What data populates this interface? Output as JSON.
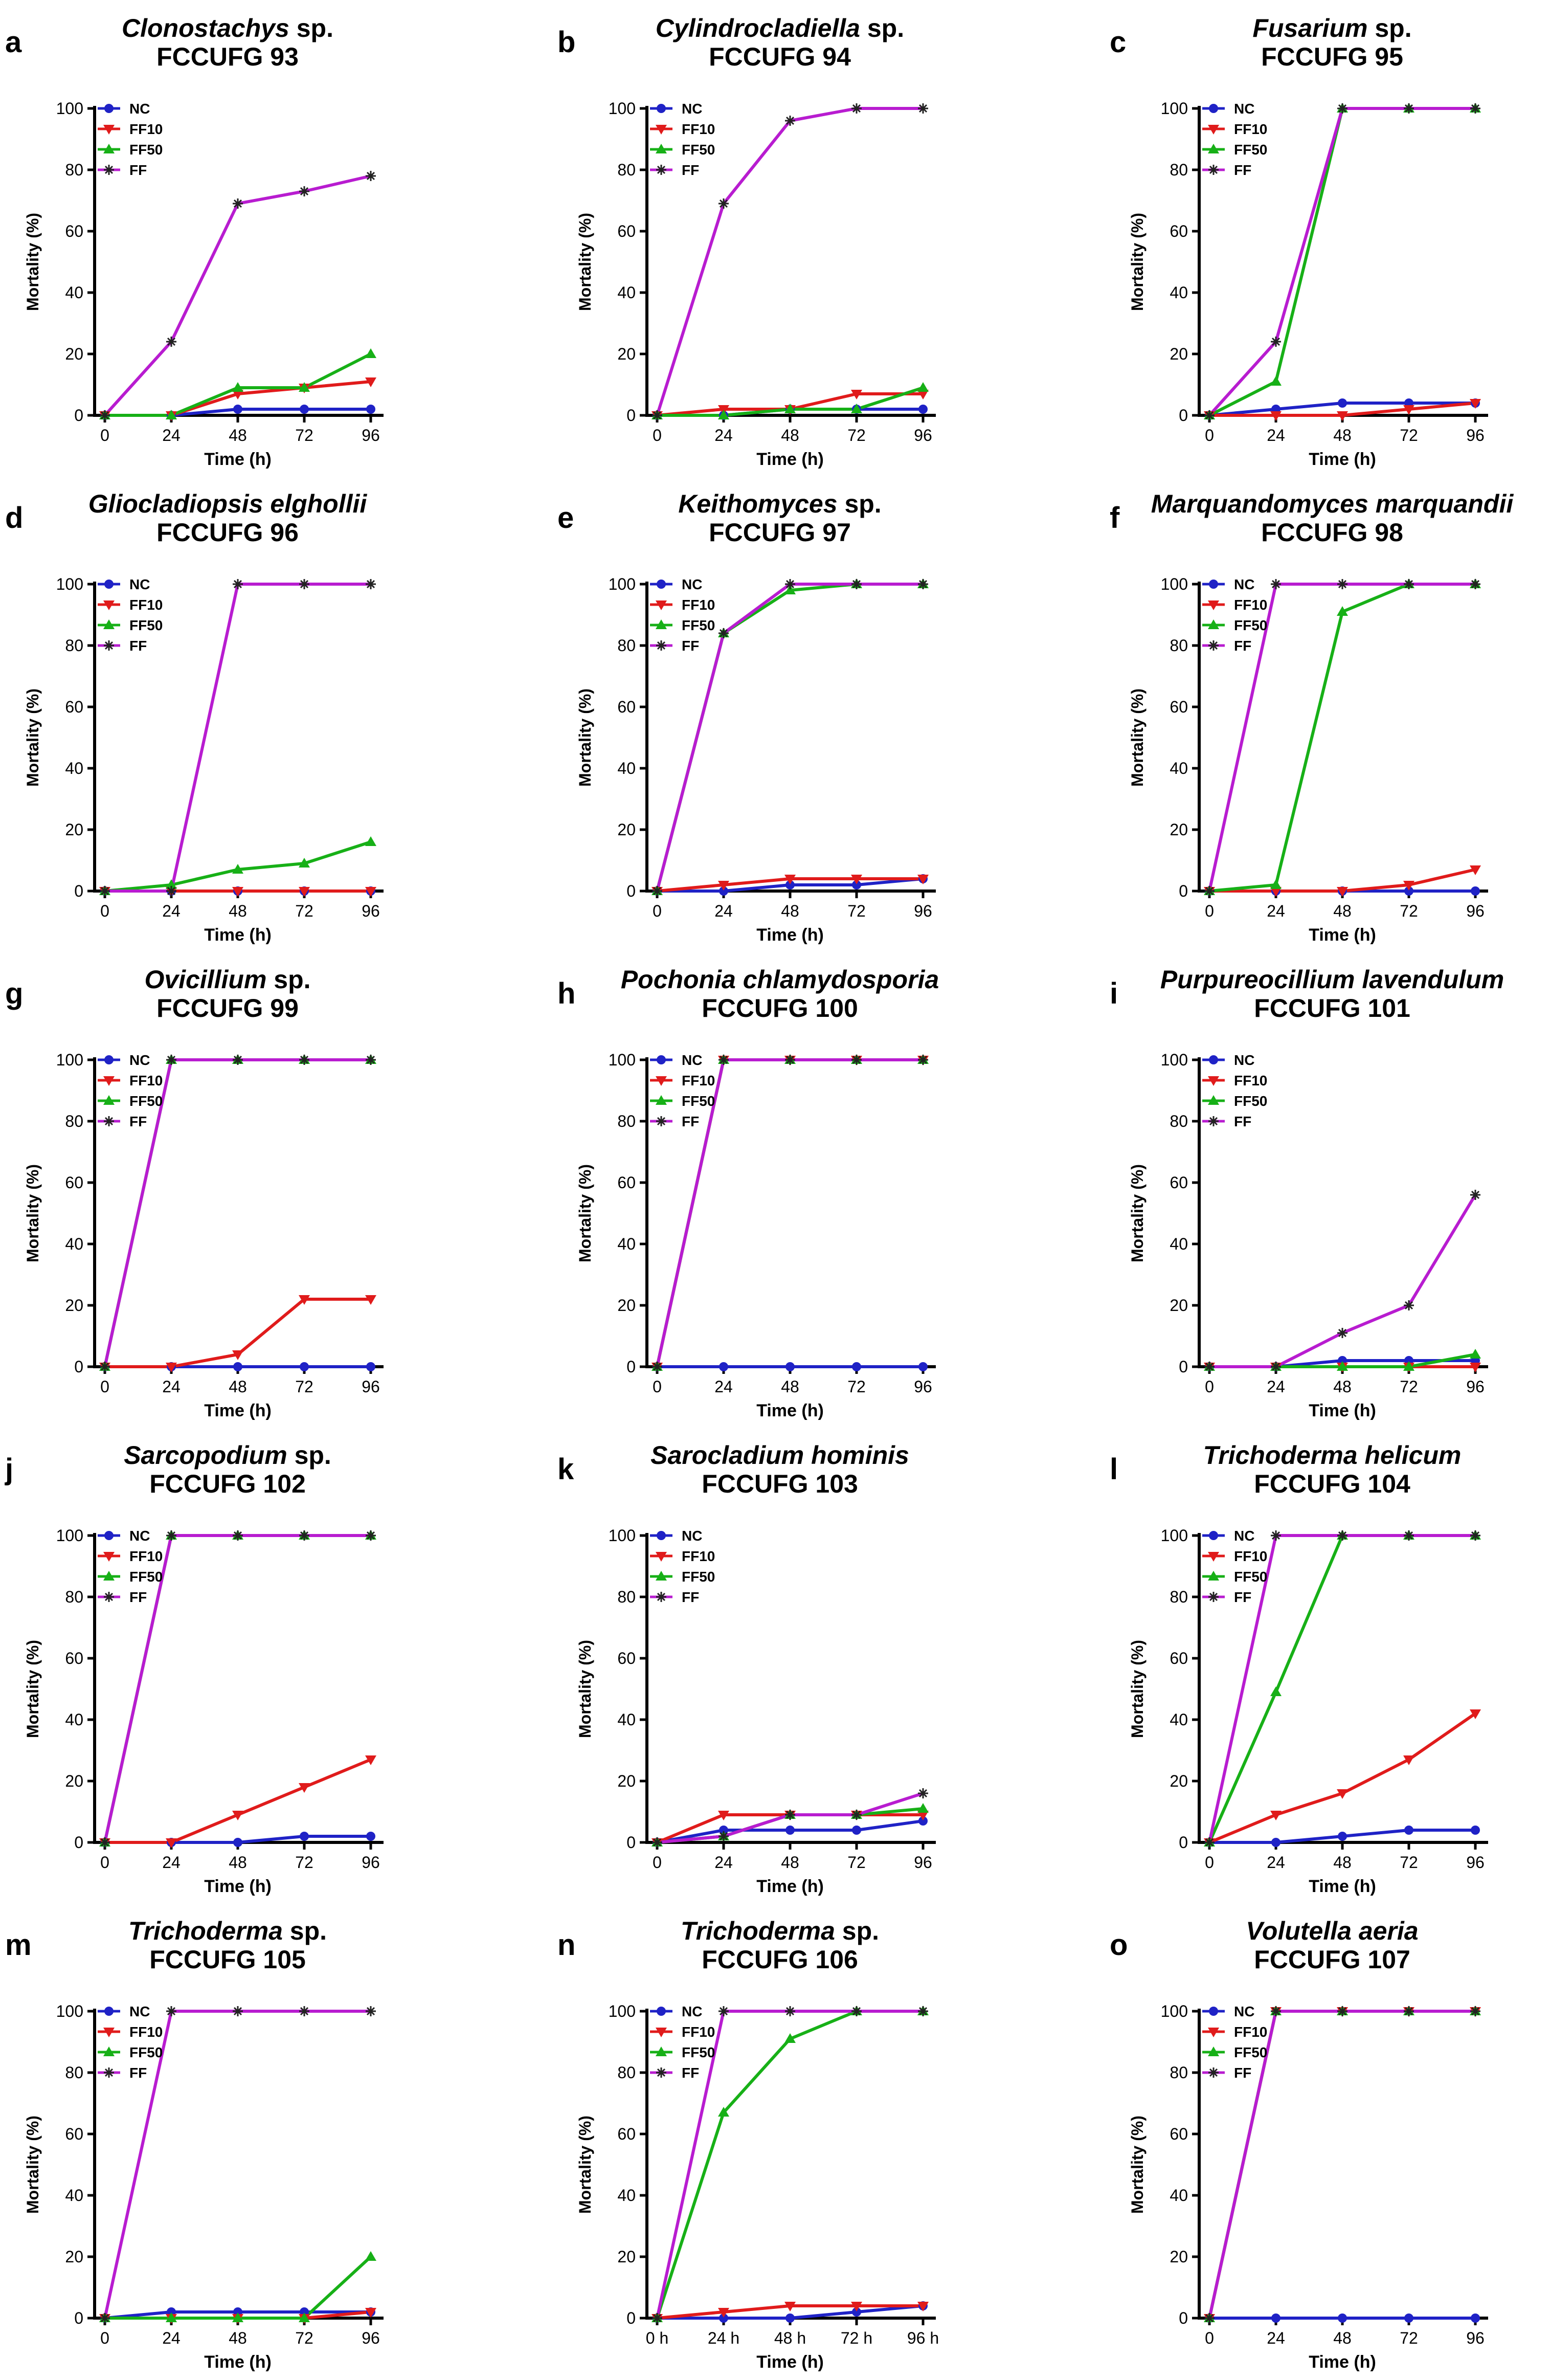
{
  "figure": {
    "series_colors": {
      "NC": "#1f22c6",
      "FF10": "#e01b1b",
      "FF50": "#17b017",
      "FF": "#b81cd0"
    }
  },
  "chart_data": [
    {
      "type": "line",
      "panel": "a",
      "title_italic": "Clonostachys",
      "title_plain": " sp.",
      "subtitle": "FCCUFG 93",
      "xlabel": "Time (h)",
      "ylabel": "Mortality (%)",
      "x_ticklabels": [
        "0",
        "24",
        "48",
        "72",
        "96"
      ],
      "y_ticks": [
        "0",
        "20",
        "40",
        "60",
        "80",
        "100"
      ],
      "ylim": [
        0,
        100
      ],
      "x": [
        0,
        24,
        48,
        72,
        96
      ],
      "series": [
        {
          "name": "NC",
          "values": [
            0,
            0,
            2,
            2,
            2
          ]
        },
        {
          "name": "FF10",
          "values": [
            0,
            0,
            7,
            9,
            11
          ]
        },
        {
          "name": "FF50",
          "values": [
            0,
            0,
            9,
            9,
            20
          ]
        },
        {
          "name": "FF",
          "values": [
            0,
            24,
            69,
            73,
            78
          ]
        }
      ]
    },
    {
      "type": "line",
      "panel": "b",
      "title_italic": "Cylindrocladiella",
      "title_plain": " sp.",
      "subtitle": "FCCUFG 94",
      "xlabel": "Time (h)",
      "ylabel": "Mortality (%)",
      "x_ticklabels": [
        "0",
        "24",
        "48",
        "72",
        "96"
      ],
      "y_ticks": [
        "0",
        "20",
        "40",
        "60",
        "80",
        "100"
      ],
      "ylim": [
        0,
        100
      ],
      "x": [
        0,
        24,
        48,
        72,
        96
      ],
      "series": [
        {
          "name": "NC",
          "values": [
            0,
            0,
            2,
            2,
            2
          ]
        },
        {
          "name": "FF10",
          "values": [
            0,
            2,
            2,
            7,
            7
          ]
        },
        {
          "name": "FF50",
          "values": [
            0,
            0,
            2,
            2,
            9
          ]
        },
        {
          "name": "FF",
          "values": [
            0,
            69,
            96,
            100,
            100
          ]
        }
      ]
    },
    {
      "type": "line",
      "panel": "c",
      "title_italic": "Fusarium",
      "title_plain": " sp.",
      "subtitle": "FCCUFG 95",
      "xlabel": "Time (h)",
      "ylabel": "Mortality (%)",
      "x_ticklabels": [
        "0",
        "24",
        "48",
        "72",
        "96"
      ],
      "y_ticks": [
        "0",
        "20",
        "40",
        "60",
        "80",
        "100"
      ],
      "ylim": [
        0,
        100
      ],
      "x": [
        0,
        24,
        48,
        72,
        96
      ],
      "series": [
        {
          "name": "NC",
          "values": [
            0,
            2,
            4,
            4,
            4
          ]
        },
        {
          "name": "FF10",
          "values": [
            0,
            0,
            0,
            2,
            4
          ]
        },
        {
          "name": "FF50",
          "values": [
            0,
            11,
            100,
            100,
            100
          ]
        },
        {
          "name": "FF",
          "values": [
            0,
            24,
            100,
            100,
            100
          ]
        }
      ]
    },
    {
      "type": "line",
      "panel": "d",
      "title_italic": "Gliocladiopsis elghollii",
      "title_plain": "",
      "subtitle": "FCCUFG 96",
      "xlabel": "Time (h)",
      "ylabel": "Mortality (%)",
      "x_ticklabels": [
        "0",
        "24",
        "48",
        "72",
        "96"
      ],
      "y_ticks": [
        "0",
        "20",
        "40",
        "60",
        "80",
        "100"
      ],
      "ylim": [
        0,
        100
      ],
      "x": [
        0,
        24,
        48,
        72,
        96
      ],
      "series": [
        {
          "name": "NC",
          "values": [
            0,
            0,
            0,
            0,
            0
          ]
        },
        {
          "name": "FF10",
          "values": [
            0,
            0,
            0,
            0,
            0
          ]
        },
        {
          "name": "FF50",
          "values": [
            0,
            2,
            7,
            9,
            16
          ]
        },
        {
          "name": "FF",
          "values": [
            0,
            0,
            100,
            100,
            100
          ]
        }
      ]
    },
    {
      "type": "line",
      "panel": "e",
      "title_italic": "Keithomyces",
      "title_plain": " sp.",
      "subtitle": "FCCUFG 97",
      "xlabel": "Time (h)",
      "ylabel": "Mortality (%)",
      "x_ticklabels": [
        "0",
        "24",
        "48",
        "72",
        "96"
      ],
      "y_ticks": [
        "0",
        "20",
        "40",
        "60",
        "80",
        "100"
      ],
      "ylim": [
        0,
        100
      ],
      "x": [
        0,
        24,
        48,
        72,
        96
      ],
      "series": [
        {
          "name": "NC",
          "values": [
            0,
            0,
            2,
            2,
            4
          ]
        },
        {
          "name": "FF10",
          "values": [
            0,
            2,
            4,
            4,
            4
          ]
        },
        {
          "name": "FF50",
          "values": [
            0,
            84,
            98,
            100,
            100
          ]
        },
        {
          "name": "FF",
          "values": [
            0,
            84,
            100,
            100,
            100
          ]
        }
      ]
    },
    {
      "type": "line",
      "panel": "f",
      "title_italic": "Marquandomyces marquandii",
      "title_plain": "",
      "subtitle": "FCCUFG 98",
      "xlabel": "Time (h)",
      "ylabel": "Mortality (%)",
      "x_ticklabels": [
        "0",
        "24",
        "48",
        "72",
        "96"
      ],
      "y_ticks": [
        "0",
        "20",
        "40",
        "60",
        "80",
        "100"
      ],
      "ylim": [
        0,
        100
      ],
      "x": [
        0,
        24,
        48,
        72,
        96
      ],
      "series": [
        {
          "name": "NC",
          "values": [
            0,
            0,
            0,
            0,
            0
          ]
        },
        {
          "name": "FF10",
          "values": [
            0,
            0,
            0,
            2,
            7
          ]
        },
        {
          "name": "FF50",
          "values": [
            0,
            2,
            91,
            100,
            100
          ]
        },
        {
          "name": "FF",
          "values": [
            0,
            100,
            100,
            100,
            100
          ]
        }
      ]
    },
    {
      "type": "line",
      "panel": "g",
      "title_italic": "Ovicillium",
      "title_plain": " sp.",
      "subtitle": "FCCUFG 99",
      "xlabel": "Time (h)",
      "ylabel": "Mortality (%)",
      "x_ticklabels": [
        "0",
        "24",
        "48",
        "72",
        "96"
      ],
      "y_ticks": [
        "0",
        "20",
        "40",
        "60",
        "80",
        "100"
      ],
      "ylim": [
        0,
        100
      ],
      "x": [
        0,
        24,
        48,
        72,
        96
      ],
      "series": [
        {
          "name": "NC",
          "values": [
            0,
            0,
            0,
            0,
            0
          ]
        },
        {
          "name": "FF10",
          "values": [
            0,
            0,
            4,
            22,
            22
          ]
        },
        {
          "name": "FF50",
          "values": [
            0,
            100,
            100,
            100,
            100
          ]
        },
        {
          "name": "FF",
          "values": [
            0,
            100,
            100,
            100,
            100
          ]
        }
      ]
    },
    {
      "type": "line",
      "panel": "h",
      "title_italic": "Pochonia chlamydosporia",
      "title_plain": "",
      "subtitle": "FCCUFG 100",
      "xlabel": "Time (h)",
      "ylabel": "Mortality (%)",
      "x_ticklabels": [
        "0",
        "24",
        "48",
        "72",
        "96"
      ],
      "y_ticks": [
        "0",
        "20",
        "40",
        "60",
        "80",
        "100"
      ],
      "ylim": [
        0,
        100
      ],
      "x": [
        0,
        24,
        48,
        72,
        96
      ],
      "series": [
        {
          "name": "NC",
          "values": [
            0,
            0,
            0,
            0,
            0
          ]
        },
        {
          "name": "FF10",
          "values": [
            0,
            100,
            100,
            100,
            100
          ]
        },
        {
          "name": "FF50",
          "values": [
            0,
            100,
            100,
            100,
            100
          ]
        },
        {
          "name": "FF",
          "values": [
            0,
            100,
            100,
            100,
            100
          ]
        }
      ]
    },
    {
      "type": "line",
      "panel": "i",
      "title_italic": "Purpureocillium lavendulum",
      "title_plain": "",
      "subtitle": "FCCUFG 101",
      "xlabel": "Time (h)",
      "ylabel": "Mortality (%)",
      "x_ticklabels": [
        "0",
        "24",
        "48",
        "72",
        "96"
      ],
      "y_ticks": [
        "0",
        "20",
        "40",
        "60",
        "80",
        "100"
      ],
      "ylim": [
        0,
        100
      ],
      "x": [
        0,
        24,
        48,
        72,
        96
      ],
      "series": [
        {
          "name": "NC",
          "values": [
            0,
            0,
            2,
            2,
            2
          ]
        },
        {
          "name": "FF10",
          "values": [
            0,
            0,
            0,
            0,
            0
          ]
        },
        {
          "name": "FF50",
          "values": [
            0,
            0,
            0,
            0,
            4
          ]
        },
        {
          "name": "FF",
          "values": [
            0,
            0,
            11,
            20,
            56
          ]
        }
      ]
    },
    {
      "type": "line",
      "panel": "j",
      "title_italic": "Sarcopodium",
      "title_plain": " sp.",
      "subtitle": "FCCUFG 102",
      "xlabel": "Time (h)",
      "ylabel": "Mortality (%)",
      "x_ticklabels": [
        "0",
        "24",
        "48",
        "72",
        "96"
      ],
      "y_ticks": [
        "0",
        "20",
        "40",
        "60",
        "80",
        "100"
      ],
      "ylim": [
        0,
        100
      ],
      "x": [
        0,
        24,
        48,
        72,
        96
      ],
      "series": [
        {
          "name": "NC",
          "values": [
            0,
            0,
            0,
            2,
            2
          ]
        },
        {
          "name": "FF10",
          "values": [
            0,
            0,
            9,
            18,
            27
          ]
        },
        {
          "name": "FF50",
          "values": [
            0,
            100,
            100,
            100,
            100
          ]
        },
        {
          "name": "FF",
          "values": [
            0,
            100,
            100,
            100,
            100
          ]
        }
      ]
    },
    {
      "type": "line",
      "panel": "k",
      "title_italic": "Sarocladium hominis",
      "title_plain": "",
      "subtitle": "FCCUFG 103",
      "xlabel": "Time (h)",
      "ylabel": "Mortality (%)",
      "x_ticklabels": [
        "0",
        "24",
        "48",
        "72",
        "96"
      ],
      "y_ticks": [
        "0",
        "20",
        "40",
        "60",
        "80",
        "100"
      ],
      "ylim": [
        0,
        100
      ],
      "x": [
        0,
        24,
        48,
        72,
        96
      ],
      "series": [
        {
          "name": "NC",
          "values": [
            0,
            4,
            4,
            4,
            7
          ]
        },
        {
          "name": "FF10",
          "values": [
            0,
            9,
            9,
            9,
            9
          ]
        },
        {
          "name": "FF50",
          "values": [
            0,
            2,
            9,
            9,
            11
          ]
        },
        {
          "name": "FF",
          "values": [
            0,
            2,
            9,
            9,
            16
          ]
        }
      ]
    },
    {
      "type": "line",
      "panel": "l",
      "title_italic": "Trichoderma helicum",
      "title_plain": "",
      "subtitle": "FCCUFG 104",
      "xlabel": "Time (h)",
      "ylabel": "Mortality (%)",
      "x_ticklabels": [
        "0",
        "24",
        "48",
        "72",
        "96"
      ],
      "y_ticks": [
        "0",
        "20",
        "40",
        "60",
        "80",
        "100"
      ],
      "ylim": [
        0,
        100
      ],
      "x": [
        0,
        24,
        48,
        72,
        96
      ],
      "series": [
        {
          "name": "NC",
          "values": [
            0,
            0,
            2,
            4,
            4
          ]
        },
        {
          "name": "FF10",
          "values": [
            0,
            9,
            16,
            27,
            42
          ]
        },
        {
          "name": "FF50",
          "values": [
            0,
            49,
            100,
            100,
            100
          ]
        },
        {
          "name": "FF",
          "values": [
            0,
            100,
            100,
            100,
            100
          ]
        }
      ]
    },
    {
      "type": "line",
      "panel": "m",
      "title_italic": "Trichoderma",
      "title_plain": " sp.",
      "subtitle": "FCCUFG 105",
      "xlabel": "Time (h)",
      "ylabel": "Mortality (%)",
      "x_ticklabels": [
        "0",
        "24",
        "48",
        "72",
        "96"
      ],
      "y_ticks": [
        "0",
        "20",
        "40",
        "60",
        "80",
        "100"
      ],
      "ylim": [
        0,
        100
      ],
      "x": [
        0,
        24,
        48,
        72,
        96
      ],
      "series": [
        {
          "name": "NC",
          "values": [
            0,
            2,
            2,
            2,
            2
          ]
        },
        {
          "name": "FF10",
          "values": [
            0,
            0,
            0,
            0,
            2
          ]
        },
        {
          "name": "FF50",
          "values": [
            0,
            0,
            0,
            0,
            20
          ]
        },
        {
          "name": "FF",
          "values": [
            0,
            100,
            100,
            100,
            100
          ]
        }
      ]
    },
    {
      "type": "line",
      "panel": "n",
      "title_italic": "Trichoderma",
      "title_plain": " sp.",
      "subtitle": "FCCUFG 106",
      "xlabel": "Time (h)",
      "ylabel": "Mortality (%)",
      "x_ticklabels": [
        "0 h",
        "24 h",
        "48 h",
        "72 h",
        "96 h"
      ],
      "y_ticks": [
        "0",
        "20",
        "40",
        "60",
        "80",
        "100"
      ],
      "ylim": [
        0,
        100
      ],
      "x": [
        0,
        24,
        48,
        72,
        96
      ],
      "series": [
        {
          "name": "NC",
          "values": [
            0,
            0,
            0,
            2,
            4
          ]
        },
        {
          "name": "FF10",
          "values": [
            0,
            2,
            4,
            4,
            4
          ]
        },
        {
          "name": "FF50",
          "values": [
            0,
            67,
            91,
            100,
            100
          ]
        },
        {
          "name": "FF",
          "values": [
            0,
            100,
            100,
            100,
            100
          ]
        }
      ]
    },
    {
      "type": "line",
      "panel": "o",
      "title_italic": "Volutella aeria",
      "title_plain": "",
      "subtitle": "FCCUFG 107",
      "xlabel": "Time (h)",
      "ylabel": "Mortality (%)",
      "x_ticklabels": [
        "0",
        "24",
        "48",
        "72",
        "96"
      ],
      "y_ticks": [
        "0",
        "20",
        "40",
        "60",
        "80",
        "100"
      ],
      "ylim": [
        0,
        100
      ],
      "x": [
        0,
        24,
        48,
        72,
        96
      ],
      "series": [
        {
          "name": "NC",
          "values": [
            0,
            0,
            0,
            0,
            0
          ]
        },
        {
          "name": "FF10",
          "values": [
            0,
            100,
            100,
            100,
            100
          ]
        },
        {
          "name": "FF50",
          "values": [
            0,
            100,
            100,
            100,
            100
          ]
        },
        {
          "name": "FF",
          "values": [
            0,
            100,
            100,
            100,
            100
          ]
        }
      ]
    }
  ]
}
